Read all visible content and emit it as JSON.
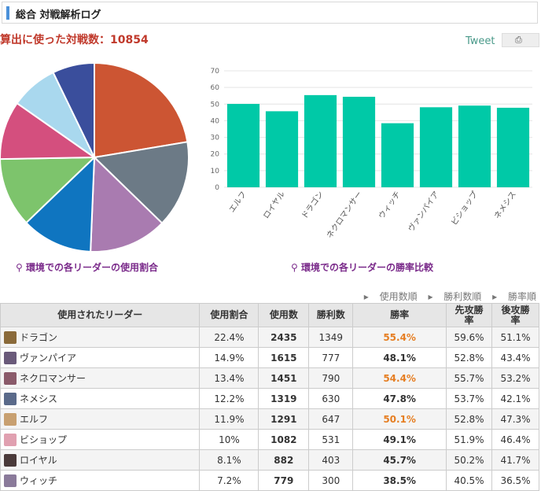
{
  "header": {
    "title": "総合 対戦解析ログ"
  },
  "matches_label": "算出に使った対戦数：10854",
  "tweet_label": "Tweet",
  "tweet_box_icon": "⎙",
  "pie_caption": "環境での各リーダーの使用割合",
  "bar_caption": "環境での各リーダーの勝率比較",
  "sort_links": [
    "使用数順",
    "勝利数順",
    "勝率順"
  ],
  "table": {
    "headers": [
      "使用されたリーダー",
      "使用割合",
      "使用数",
      "勝利数",
      "勝率",
      "先攻勝率",
      "後攻勝率"
    ],
    "rows": [
      {
        "leader": "ドラゴン",
        "share": "22.4%",
        "uses": "2435",
        "wins": "1349",
        "rate": "55.4%",
        "first": "59.6%",
        "second": "51.1%",
        "highlight": true
      },
      {
        "leader": "ヴァンパイア",
        "share": "14.9%",
        "uses": "1615",
        "wins": "777",
        "rate": "48.1%",
        "first": "52.8%",
        "second": "43.4%",
        "highlight": false
      },
      {
        "leader": "ネクロマンサー",
        "share": "13.4%",
        "uses": "1451",
        "wins": "790",
        "rate": "54.4%",
        "first": "55.7%",
        "second": "53.2%",
        "highlight": true
      },
      {
        "leader": "ネメシス",
        "share": "12.2%",
        "uses": "1319",
        "wins": "630",
        "rate": "47.8%",
        "first": "53.7%",
        "second": "42.1%",
        "highlight": false
      },
      {
        "leader": "エルフ",
        "share": "11.9%",
        "uses": "1291",
        "wins": "647",
        "rate": "50.1%",
        "first": "52.8%",
        "second": "47.3%",
        "highlight": true
      },
      {
        "leader": "ビショップ",
        "share": "10%",
        "uses": "1082",
        "wins": "531",
        "rate": "49.1%",
        "first": "51.9%",
        "second": "46.4%",
        "highlight": false
      },
      {
        "leader": "ロイヤル",
        "share": "8.1%",
        "uses": "882",
        "wins": "403",
        "rate": "45.7%",
        "first": "50.2%",
        "second": "41.7%",
        "highlight": false
      },
      {
        "leader": "ウィッチ",
        "share": "7.2%",
        "uses": "779",
        "wins": "300",
        "rate": "38.5%",
        "first": "40.5%",
        "second": "36.5%",
        "highlight": false
      }
    ]
  },
  "colors": {
    "bar": "#00c9a7",
    "highlight": "#e67e22",
    "caption": "#7a2a8a"
  },
  "chart_data": [
    {
      "type": "pie",
      "categories": [
        "ドラゴン",
        "ヴァンパイア",
        "ネクロマンサー",
        "ネメシス",
        "エルフ",
        "ビショップ",
        "ロイヤル",
        "ウィッチ"
      ],
      "values": [
        22.4,
        14.9,
        13.4,
        12.2,
        11.9,
        10,
        8.1,
        7.2
      ],
      "colors": [
        "#cc5533",
        "#6c7a86",
        "#a97bb0",
        "#0f75c0",
        "#7dc46c",
        "#d44f7e",
        "#a9d8ee",
        "#3a4e9c"
      ],
      "title": ""
    },
    {
      "type": "bar",
      "categories": [
        "エルフ",
        "ロイヤル",
        "ドラゴン",
        "ネクロマンサー",
        "ウィッチ",
        "ヴァンパイア",
        "ビショップ",
        "ネメシス"
      ],
      "values": [
        50.1,
        45.7,
        55.4,
        54.4,
        38.5,
        48.1,
        49.1,
        47.8
      ],
      "ylim": [
        0,
        70
      ],
      "yticks": [
        "0",
        "10",
        "20",
        "30",
        "40",
        "50",
        "60",
        "70"
      ],
      "grid": true,
      "title": "",
      "xlabel": "",
      "ylabel": ""
    }
  ]
}
